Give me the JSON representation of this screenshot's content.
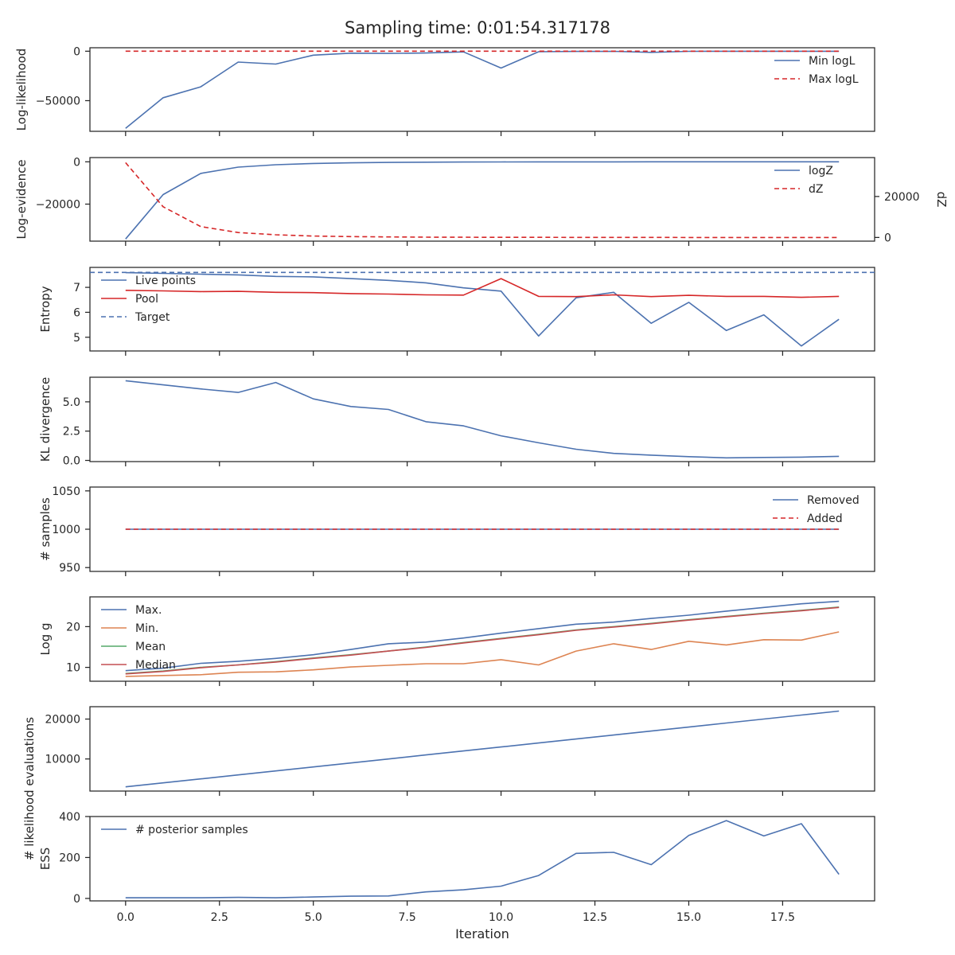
{
  "suptitle": "Sampling time: 0:01:54.317178",
  "xlabel": "Iteration",
  "x_ticks": [
    0.0,
    2.5,
    5.0,
    7.5,
    10.0,
    12.5,
    15.0,
    17.5
  ],
  "x_tick_labels": [
    "0.0",
    "2.5",
    "5.0",
    "7.5",
    "10.0",
    "12.5",
    "15.0",
    "17.5"
  ],
  "xlim": [
    -0.95,
    19.95
  ],
  "colors": {
    "blue": "#4c72b0",
    "red": "#d62728",
    "orange": "#dd8452",
    "green": "#55a868",
    "brown_red": "#c44e52",
    "target": "#4c72b0"
  },
  "chart_data": [
    {
      "type": "line",
      "ylabel": "Log-likelihood",
      "ylim": [
        -81000,
        3500
      ],
      "y_ticks": [
        0,
        -50000
      ],
      "y_tick_labels": [
        "0",
        "−50000"
      ],
      "x": [
        0,
        1,
        2,
        3,
        4,
        5,
        6,
        7,
        8,
        9,
        10,
        11,
        12,
        13,
        14,
        15,
        16,
        17,
        18,
        19
      ],
      "series": [
        {
          "name": "Min logL",
          "style": "solid",
          "color": "#4c72b0",
          "values": [
            -78000,
            -47000,
            -36000,
            -11000,
            -13000,
            -4000,
            -2000,
            -2200,
            -1800,
            -700,
            -17000,
            -500,
            -200,
            -150,
            -1200,
            -100,
            -80,
            -60,
            -50,
            -40
          ]
        },
        {
          "name": "Max logL",
          "style": "dashed",
          "color": "#d62728",
          "values": [
            0,
            0,
            0,
            0,
            0,
            0,
            0,
            0,
            0,
            0,
            0,
            0,
            0,
            0,
            0,
            0,
            0,
            0,
            0,
            0
          ]
        }
      ],
      "legend": "upper right"
    },
    {
      "type": "line",
      "ylabel": "Log-evidence",
      "ylim": [
        -37500,
        2000
      ],
      "y_ticks": [
        0,
        -20000
      ],
      "y_tick_labels": [
        "0",
        "−20000"
      ],
      "x": [
        0,
        1,
        2,
        3,
        4,
        5,
        6,
        7,
        8,
        9,
        10,
        11,
        12,
        13,
        14,
        15,
        16,
        17,
        18,
        19
      ],
      "series": [
        {
          "name": "logZ",
          "style": "solid",
          "color": "#4c72b0",
          "values": [
            -36500,
            -15500,
            -5500,
            -2500,
            -1400,
            -800,
            -500,
            -300,
            -200,
            -120,
            -80,
            -50,
            -30,
            -20,
            -10,
            -5,
            -3,
            -2,
            -1,
            -1
          ]
        }
      ],
      "twin": {
        "ylabel": "dZ",
        "ylim": [
          -1800,
          39000
        ],
        "y_ticks": [
          0,
          20000
        ],
        "y_tick_labels": [
          "0",
          "20000"
        ],
        "series": [
          {
            "name": "dZ",
            "style": "dashed",
            "color": "#d62728",
            "values": [
              36500,
              15000,
              5300,
              2400,
              1300,
              700,
              400,
              250,
              150,
              100,
              70,
              50,
              30,
              20,
              10,
              5,
              3,
              2,
              1,
              1
            ]
          }
        ]
      },
      "legend": "upper right"
    },
    {
      "type": "line",
      "ylabel": "Entropy",
      "ylim": [
        4.45,
        7.8
      ],
      "y_ticks": [
        5,
        6,
        7
      ],
      "y_tick_labels": [
        "5",
        "6",
        "7"
      ],
      "x": [
        0,
        1,
        2,
        3,
        4,
        5,
        6,
        7,
        8,
        9,
        10,
        11,
        12,
        13,
        14,
        15,
        16,
        17,
        18,
        19
      ],
      "series": [
        {
          "name": "Live points",
          "style": "solid",
          "color": "#4c72b0",
          "values": [
            7.59,
            7.56,
            7.53,
            7.5,
            7.44,
            7.42,
            7.35,
            7.28,
            7.18,
            6.98,
            6.85,
            5.05,
            6.58,
            6.8,
            5.56,
            6.4,
            5.27,
            5.9,
            4.65,
            5.72
          ]
        },
        {
          "name": "Pool",
          "style": "solid",
          "color": "#d62728",
          "values": [
            6.88,
            6.86,
            6.83,
            6.84,
            6.8,
            6.79,
            6.75,
            6.73,
            6.7,
            6.69,
            7.35,
            6.64,
            6.63,
            6.7,
            6.63,
            6.68,
            6.64,
            6.64,
            6.6,
            6.64
          ]
        },
        {
          "name": "Target",
          "style": "dashed",
          "color": "#4c72b0",
          "hline": 7.6
        }
      ],
      "legend": "upper left"
    },
    {
      "type": "line",
      "ylabel": "KL divergence",
      "ylim": [
        -0.1,
        7.1
      ],
      "y_ticks": [
        0.0,
        2.5,
        5.0
      ],
      "y_tick_labels": [
        "0.0",
        "2.5",
        "5.0"
      ],
      "x": [
        0,
        1,
        2,
        3,
        4,
        5,
        6,
        7,
        8,
        9,
        10,
        11,
        12,
        13,
        14,
        15,
        16,
        17,
        18,
        19
      ],
      "series": [
        {
          "name": "",
          "style": "solid",
          "color": "#4c72b0",
          "values": [
            6.8,
            6.45,
            6.1,
            5.8,
            6.65,
            5.25,
            4.6,
            4.35,
            3.3,
            2.95,
            2.1,
            1.5,
            0.95,
            0.6,
            0.45,
            0.32,
            0.22,
            0.25,
            0.28,
            0.35
          ]
        }
      ]
    },
    {
      "type": "line",
      "ylabel": "# samples",
      "ylim": [
        945,
        1055
      ],
      "y_ticks": [
        950,
        1000,
        1050
      ],
      "y_tick_labels": [
        "950",
        "1000",
        "1050"
      ],
      "x": [
        0,
        1,
        2,
        3,
        4,
        5,
        6,
        7,
        8,
        9,
        10,
        11,
        12,
        13,
        14,
        15,
        16,
        17,
        18,
        19
      ],
      "series": [
        {
          "name": "Removed",
          "style": "solid",
          "color": "#4c72b0",
          "values": [
            1000,
            1000,
            1000,
            1000,
            1000,
            1000,
            1000,
            1000,
            1000,
            1000,
            1000,
            1000,
            1000,
            1000,
            1000,
            1000,
            1000,
            1000,
            1000,
            1000
          ]
        },
        {
          "name": "Added",
          "style": "dashed",
          "color": "#d62728",
          "values": [
            1000,
            1000,
            1000,
            1000,
            1000,
            1000,
            1000,
            1000,
            1000,
            1000,
            1000,
            1000,
            1000,
            1000,
            1000,
            1000,
            1000,
            1000,
            1000,
            1000
          ]
        }
      ],
      "legend": "upper right"
    },
    {
      "type": "line",
      "ylabel": "Log g",
      "ylim": [
        6.6,
        27.3
      ],
      "y_ticks": [
        10,
        20
      ],
      "y_tick_labels": [
        "10",
        "20"
      ],
      "x": [
        0,
        1,
        2,
        3,
        4,
        5,
        6,
        7,
        8,
        9,
        10,
        11,
        12,
        13,
        14,
        15,
        16,
        17,
        18,
        19
      ],
      "series": [
        {
          "name": "Max.",
          "style": "solid",
          "color": "#4c72b0",
          "values": [
            9.2,
            9.8,
            11.0,
            11.5,
            12.2,
            13.1,
            14.4,
            15.8,
            16.2,
            17.2,
            18.4,
            19.5,
            20.6,
            21.1,
            22.0,
            22.8,
            23.8,
            24.7,
            25.6,
            26.2
          ]
        },
        {
          "name": "Min.",
          "style": "solid",
          "color": "#dd8452",
          "values": [
            7.8,
            8.0,
            8.2,
            8.8,
            8.9,
            9.4,
            10.1,
            10.5,
            10.9,
            10.9,
            11.9,
            10.6,
            14.0,
            15.8,
            14.4,
            16.4,
            15.5,
            16.8,
            16.7,
            18.7
          ]
        },
        {
          "name": "Mean",
          "style": "solid",
          "color": "#55a868",
          "values": [
            8.5,
            9.1,
            10.0,
            10.6,
            11.4,
            12.3,
            13.1,
            14.0,
            15.0,
            16.1,
            17.1,
            18.1,
            19.2,
            20.0,
            20.8,
            21.7,
            22.5,
            23.3,
            24.0,
            24.8
          ]
        },
        {
          "name": "Median",
          "style": "solid",
          "color": "#c44e52",
          "values": [
            8.4,
            9.0,
            9.9,
            10.6,
            11.3,
            12.2,
            13.0,
            14.0,
            14.9,
            16.0,
            17.0,
            18.0,
            19.1,
            19.9,
            20.7,
            21.6,
            22.4,
            23.2,
            23.9,
            24.7
          ]
        }
      ],
      "legend": "upper left"
    },
    {
      "type": "line",
      "ylabel": "# likelihood evaluations",
      "ylim": [
        1950,
        23100
      ],
      "y_ticks": [
        10000,
        20000
      ],
      "y_tick_labels": [
        "10000",
        "20000"
      ],
      "x": [
        0,
        1,
        2,
        3,
        4,
        5,
        6,
        7,
        8,
        9,
        10,
        11,
        12,
        13,
        14,
        15,
        16,
        17,
        18,
        19
      ],
      "series": [
        {
          "name": "",
          "style": "solid",
          "color": "#4c72b0",
          "values": [
            3000,
            4000,
            5000,
            6000,
            7000,
            8000,
            9000,
            10000,
            11000,
            12000,
            13000,
            14000,
            15000,
            16000,
            17000,
            18000,
            19000,
            20000,
            21000,
            22000
          ]
        }
      ]
    },
    {
      "type": "line",
      "ylabel": "ESS",
      "ylim": [
        -12,
        400
      ],
      "y_ticks": [
        0,
        200,
        400
      ],
      "y_tick_labels": [
        "0",
        "200",
        "400"
      ],
      "x": [
        0,
        1,
        2,
        3,
        4,
        5,
        6,
        7,
        8,
        9,
        10,
        11,
        12,
        13,
        14,
        15,
        16,
        17,
        18,
        19
      ],
      "series": [
        {
          "name": "# posterior samples",
          "style": "solid",
          "color": "#4c72b0",
          "values": [
            3,
            3,
            3,
            5,
            3,
            7,
            11,
            12,
            32,
            42,
            60,
            112,
            220,
            225,
            165,
            308,
            380,
            305,
            365,
            118
          ]
        }
      ],
      "legend": "upper left"
    }
  ]
}
